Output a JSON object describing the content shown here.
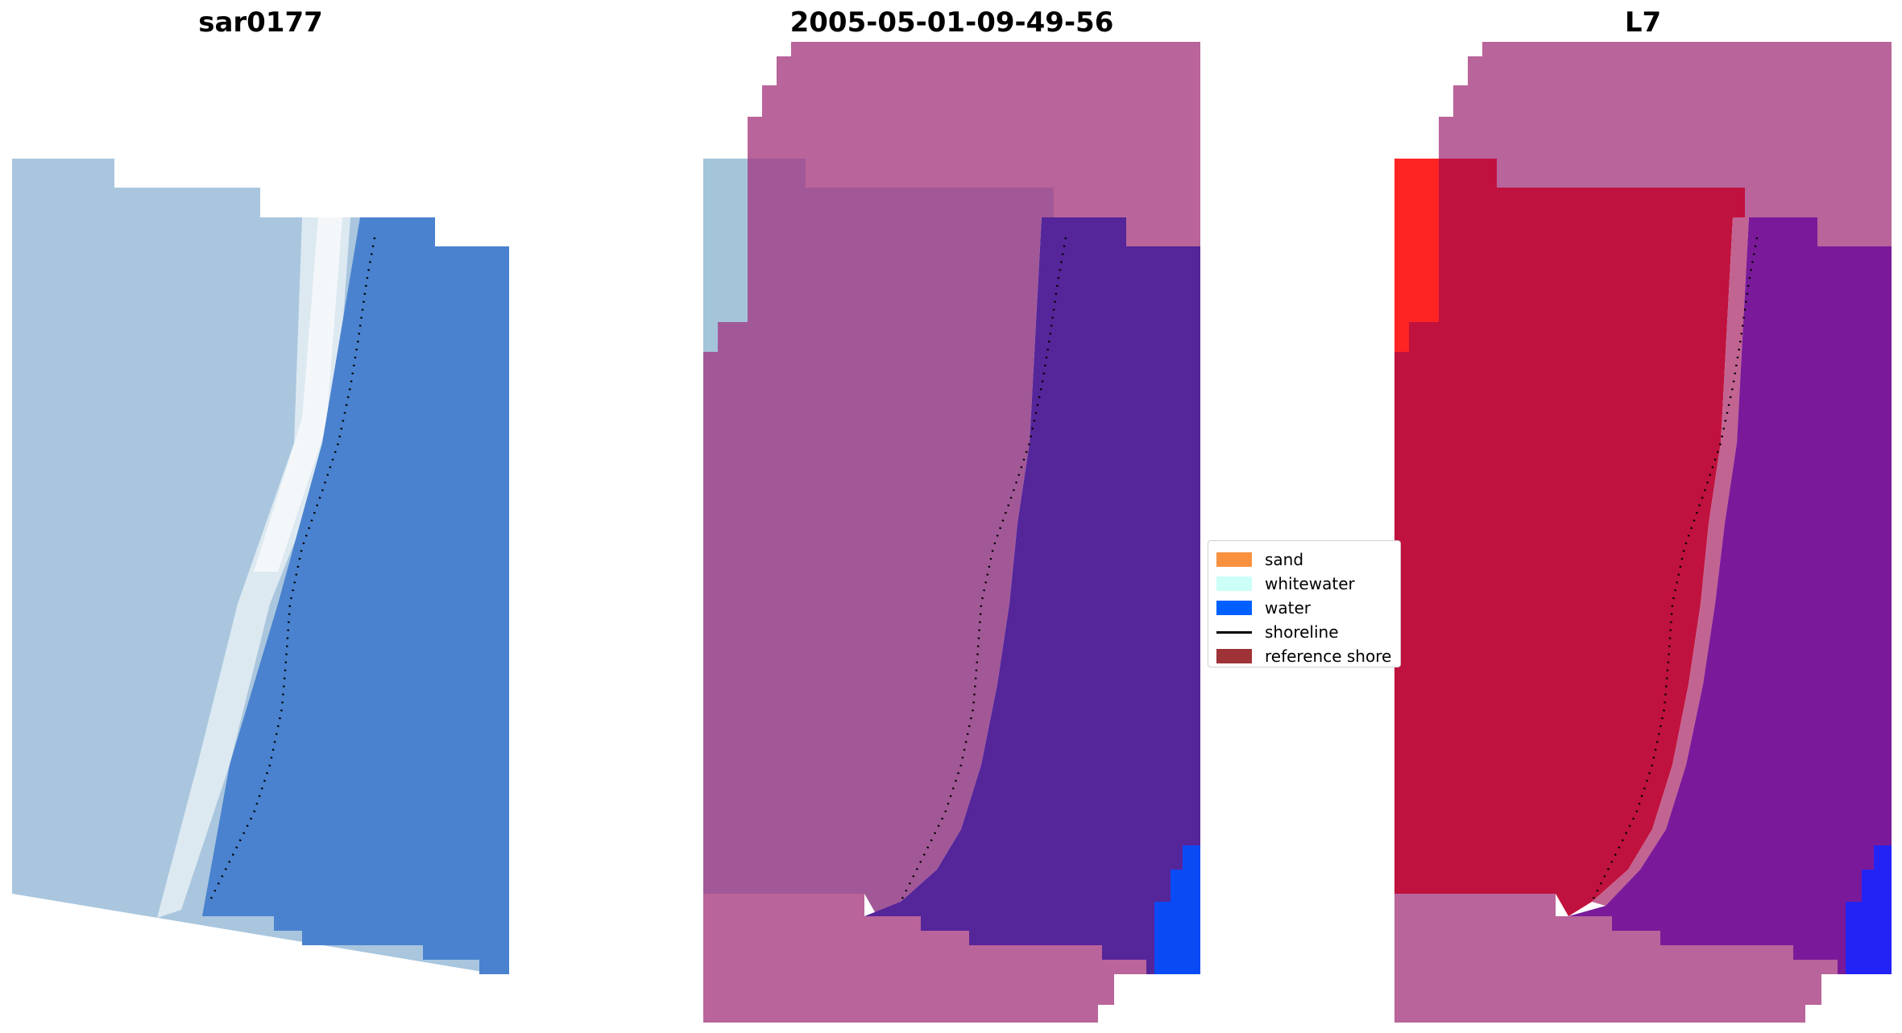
{
  "panels": [
    {
      "title": "sar0177"
    },
    {
      "title": "2005-05-01-09-49-56"
    },
    {
      "title": "L7"
    }
  ],
  "legend": {
    "items": [
      {
        "label": "sand",
        "color": "#f9913f",
        "kind": "patch"
      },
      {
        "label": "whitewater",
        "color": "#ccfff7",
        "kind": "patch"
      },
      {
        "label": "water",
        "color": "#0060ff",
        "kind": "patch"
      },
      {
        "label": "shoreline",
        "color": "#000000",
        "kind": "line"
      },
      {
        "label": "reference shore",
        "color": "#9e3236",
        "kind": "patch"
      }
    ]
  },
  "colors": {
    "rgb_land": "#a8c4dc",
    "rgb_sea": "#4a82cf",
    "rgb_surf": "#e8f2f6",
    "mask": "#b9629b",
    "class_land": "#9a4f8e",
    "class_water": "#55259a",
    "index_land": "#c0123e",
    "index_water": "#7a1a9a",
    "edge_water": "#0a4af5"
  }
}
